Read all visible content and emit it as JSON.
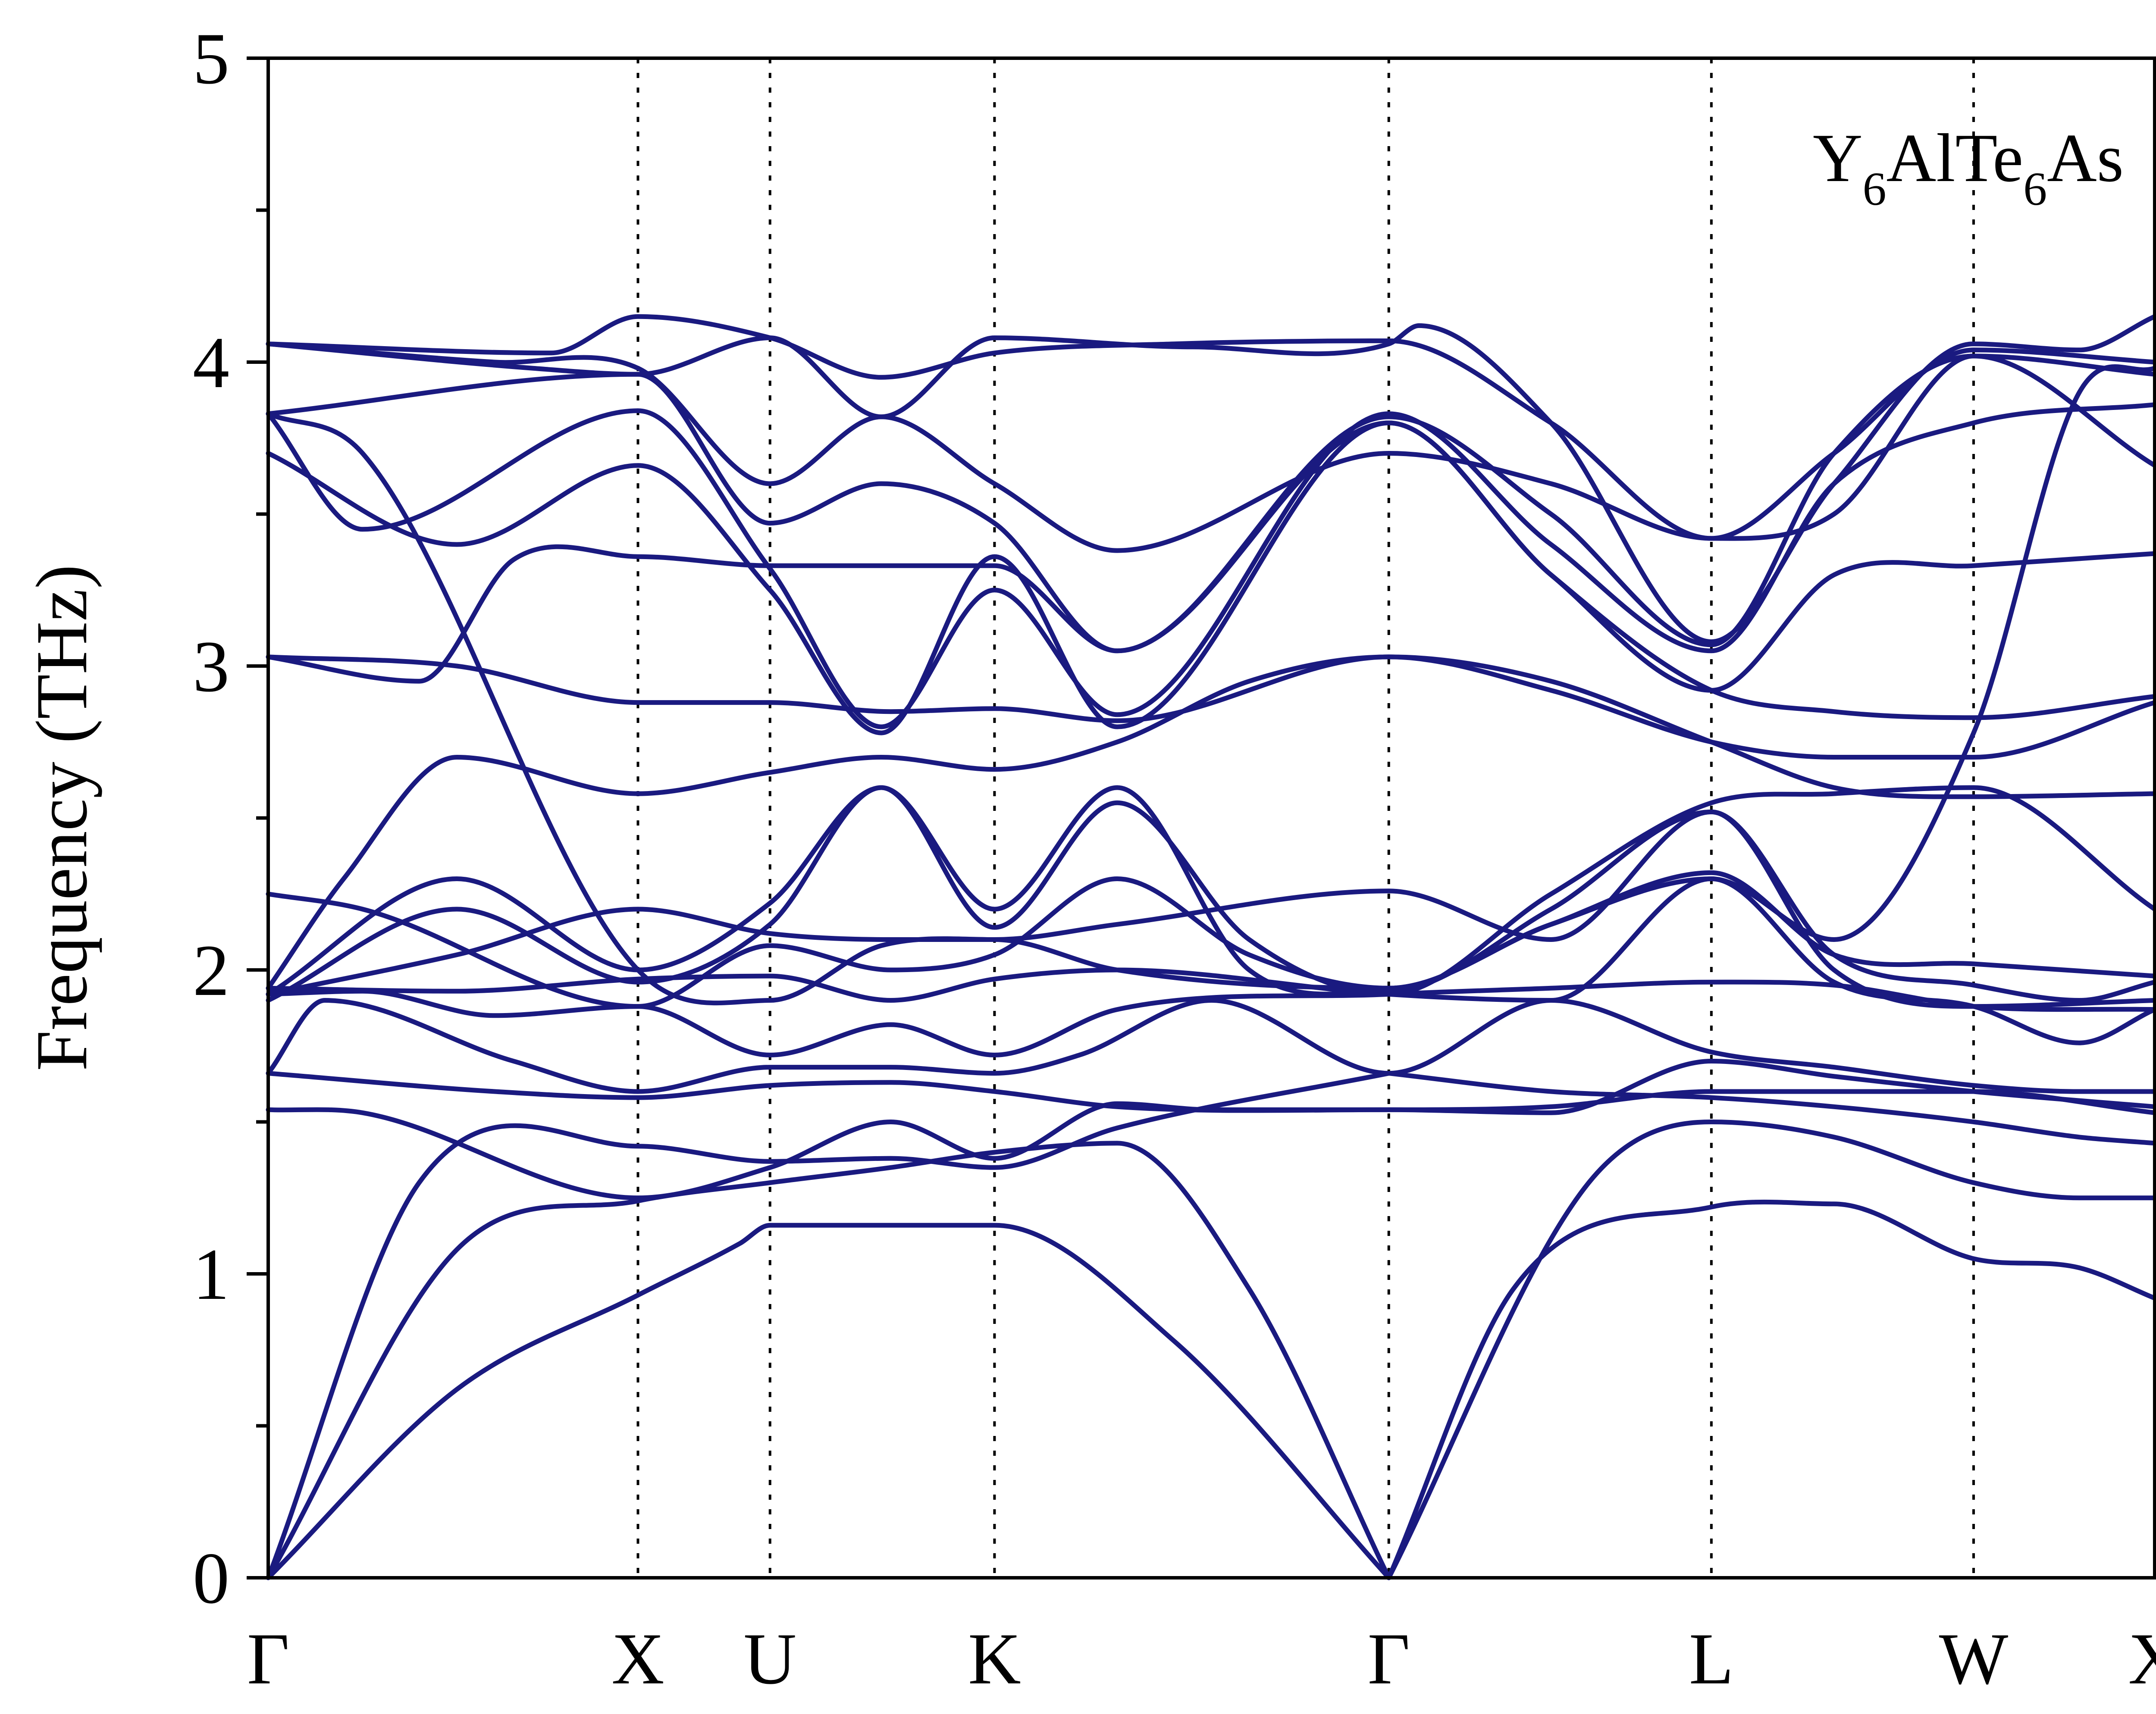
{
  "chart_data": {
    "type": "line",
    "title": "",
    "xlabel": "",
    "ylabel": "Frequency (THz)",
    "ylim": [
      0,
      5
    ],
    "yticks": [
      "0",
      "1",
      "2",
      "3",
      "4",
      "5"
    ],
    "xlim": [
      0,
      1
    ],
    "grid": false,
    "legend": "none",
    "line_color": "#1a1a80",
    "inset_label": {
      "main1": "Y",
      "sub1": "6",
      "main2": "AlTe",
      "sub2": "6",
      "main3": "As"
    },
    "high_symmetry_points": [
      {
        "label": "Γ",
        "x": 0.0
      },
      {
        "label": "X",
        "x": 0.196
      },
      {
        "label": "U",
        "x": 0.266
      },
      {
        "label": "K",
        "x": 0.385
      },
      {
        "label": "Γ",
        "x": 0.594
      },
      {
        "label": "L",
        "x": 0.765
      },
      {
        "label": "W",
        "x": 0.904
      },
      {
        "label": "X",
        "x": 1.0
      }
    ],
    "bands": [
      {
        "x": [
          0,
          0.1,
          0.196,
          0.25,
          0.266,
          0.385,
          0.48,
          0.594
        ],
        "y": [
          0,
          0.62,
          0.93,
          1.1,
          1.16,
          1.16,
          0.78,
          0
        ]
      },
      {
        "x": [
          0,
          0.1,
          0.196,
          0.266,
          0.33,
          0.385,
          0.45,
          0.52,
          0.594
        ],
        "y": [
          0,
          1.08,
          1.24,
          1.3,
          1.35,
          1.4,
          1.43,
          0.95,
          0
        ]
      },
      {
        "x": [
          0,
          0.08,
          0.196,
          0.266,
          0.33,
          0.385,
          0.45,
          0.594
        ],
        "y": [
          0,
          1.3,
          1.42,
          1.37,
          1.38,
          1.35,
          1.48,
          1.66
        ]
      },
      {
        "x": [
          0.594,
          0.66,
          0.765,
          0.83,
          0.904,
          0.96,
          1.0
        ],
        "y": [
          0,
          0.95,
          1.22,
          1.23,
          1.05,
          1.02,
          0.92
        ]
      },
      {
        "x": [
          0.594,
          0.7,
          0.765,
          0.83,
          0.904,
          0.96,
          1.0
        ],
        "y": [
          0,
          1.3,
          1.5,
          1.45,
          1.3,
          1.25,
          1.25
        ]
      },
      {
        "x": [
          0.594,
          0.68,
          0.765,
          0.83,
          0.904,
          0.96,
          1.0
        ],
        "y": [
          1.66,
          1.6,
          1.58,
          1.55,
          1.5,
          1.45,
          1.43
        ]
      },
      {
        "x": [
          0,
          0.05,
          0.196,
          0.266,
          0.33,
          0.385,
          0.45,
          0.5,
          0.594,
          0.68,
          0.765,
          0.83,
          0.904,
          1.0
        ],
        "y": [
          1.54,
          1.53,
          1.25,
          1.35,
          1.5,
          1.38,
          1.56,
          1.54,
          1.54,
          1.53,
          1.7,
          1.65,
          1.6,
          1.55
        ]
      },
      {
        "x": [
          0,
          0.12,
          0.196,
          0.266,
          0.33,
          0.385,
          0.45,
          0.594,
          0.68,
          0.765,
          0.83,
          0.904,
          1.0
        ],
        "y": [
          1.66,
          1.6,
          1.58,
          1.62,
          1.63,
          1.6,
          1.55,
          1.54,
          1.55,
          1.6,
          1.6,
          1.6,
          1.53
        ]
      },
      {
        "x": [
          0,
          0.03,
          0.13,
          0.196,
          0.266,
          0.33,
          0.385,
          0.43,
          0.5,
          0.594,
          0.68,
          0.765,
          0.83,
          0.904,
          0.96,
          1.0
        ],
        "y": [
          1.66,
          1.9,
          1.7,
          1.6,
          1.68,
          1.68,
          1.66,
          1.72,
          1.9,
          1.66,
          1.9,
          1.73,
          1.68,
          1.62,
          1.6,
          1.6
        ]
      },
      {
        "x": [
          0,
          0.05,
          0.12,
          0.196,
          0.266,
          0.33,
          0.385,
          0.45,
          0.594,
          0.68,
          0.765,
          0.83,
          0.904,
          1.0
        ],
        "y": [
          1.92,
          1.93,
          1.85,
          1.88,
          1.72,
          1.82,
          1.72,
          1.87,
          1.92,
          1.94,
          1.96,
          1.95,
          1.88,
          1.87
        ]
      },
      {
        "x": [
          0,
          0.1,
          0.196,
          0.266,
          0.33,
          0.385,
          0.45,
          0.594,
          0.68,
          0.765,
          0.83,
          0.904,
          0.96,
          1.0
        ],
        "y": [
          1.94,
          1.93,
          1.97,
          1.98,
          1.9,
          1.97,
          2.0,
          1.92,
          1.9,
          2.3,
          1.96,
          1.88,
          1.76,
          1.87
        ]
      },
      {
        "x": [
          0,
          0.1,
          0.196,
          0.266,
          0.33,
          0.385,
          0.45,
          0.594,
          0.68,
          0.765,
          0.83,
          0.904,
          0.96,
          1.0
        ],
        "y": [
          1.92,
          2.05,
          2.2,
          2.12,
          2.1,
          2.1,
          2.15,
          2.26,
          2.1,
          2.52,
          2.05,
          1.95,
          1.9,
          1.96
        ]
      },
      {
        "x": [
          0,
          0.05,
          0.196,
          0.266,
          0.33,
          0.385,
          0.45,
          0.52,
          0.594,
          0.68,
          0.765,
          0.83,
          0.904,
          1.0
        ],
        "y": [
          2.25,
          2.2,
          1.88,
          2.08,
          2.0,
          2.05,
          2.3,
          2.05,
          1.94,
          2.15,
          2.32,
          2.05,
          2.02,
          1.98
        ]
      },
      {
        "x": [
          0,
          0.1,
          0.196,
          0.266,
          0.325,
          0.385,
          0.45,
          0.52,
          0.594,
          0.68,
          0.765,
          0.83,
          0.904,
          1.0
        ],
        "y": [
          1.9,
          2.2,
          1.96,
          2.15,
          2.6,
          2.2,
          2.6,
          2.0,
          1.93,
          2.2,
          2.52,
          2.0,
          1.88,
          1.9
        ]
      },
      {
        "x": [
          0,
          0.1,
          0.196,
          0.266,
          0.325,
          0.385,
          0.45,
          0.52,
          0.594,
          0.68,
          0.765,
          0.83,
          0.904,
          1.0
        ],
        "y": [
          1.92,
          2.3,
          2.0,
          2.22,
          2.6,
          2.14,
          2.55,
          2.1,
          1.92,
          2.25,
          2.55,
          2.58,
          2.6,
          2.2
        ]
      },
      {
        "x": [
          0,
          0.04,
          0.1,
          0.196,
          0.266,
          0.325,
          0.385,
          0.45,
          0.52,
          0.594,
          0.68,
          0.765,
          0.83,
          0.904,
          1.0
        ],
        "y": [
          1.94,
          2.3,
          2.7,
          2.58,
          2.65,
          2.7,
          2.66,
          2.75,
          2.95,
          3.03,
          2.95,
          2.75,
          2.6,
          2.57,
          2.58
        ]
      },
      {
        "x": [
          0,
          0.1,
          0.196,
          0.266,
          0.33,
          0.385,
          0.45,
          0.594,
          0.68,
          0.765,
          0.83,
          0.904,
          1.0
        ],
        "y": [
          3.03,
          3.0,
          2.88,
          2.88,
          2.85,
          2.86,
          2.82,
          3.03,
          2.92,
          2.75,
          2.7,
          2.7,
          2.88
        ]
      },
      {
        "x": [
          0,
          0.08,
          0.13,
          0.196,
          0.266,
          0.325,
          0.385,
          0.45,
          0.594,
          0.68,
          0.765,
          0.83,
          0.904,
          1.0
        ],
        "y": [
          3.03,
          2.95,
          3.35,
          3.36,
          3.33,
          3.33,
          3.33,
          3.05,
          3.8,
          3.3,
          2.92,
          2.85,
          2.83,
          2.9
        ]
      },
      {
        "x": [
          0,
          0.1,
          0.196,
          0.266,
          0.325,
          0.385,
          0.45,
          0.594,
          0.68,
          0.765,
          0.83,
          0.904,
          1.0
        ],
        "y": [
          3.7,
          3.4,
          3.66,
          3.25,
          2.78,
          3.36,
          2.8,
          3.8,
          3.3,
          2.92,
          3.3,
          3.33,
          3.37
        ]
      },
      {
        "x": [
          0,
          0.05,
          0.196,
          0.266,
          0.325,
          0.385,
          0.45,
          0.594,
          0.68,
          0.765,
          0.83,
          0.904,
          1.0
        ],
        "y": [
          3.83,
          3.45,
          3.84,
          3.32,
          2.8,
          3.25,
          2.84,
          3.83,
          3.4,
          3.05,
          3.6,
          3.8,
          3.86
        ]
      },
      {
        "x": [
          0,
          0.196,
          0.266,
          0.325,
          0.385,
          0.45,
          0.594,
          0.68,
          0.765,
          0.83,
          0.904,
          1.0
        ],
        "y": [
          3.83,
          3.96,
          3.47,
          3.6,
          3.47,
          3.05,
          3.82,
          3.5,
          3.07,
          3.7,
          4.02,
          3.66
        ]
      },
      {
        "x": [
          0,
          0.12,
          0.196,
          0.266,
          0.325,
          0.385,
          0.45,
          0.594,
          0.68,
          0.765,
          0.83,
          0.904,
          1.0
        ],
        "y": [
          4.06,
          4.0,
          3.98,
          3.6,
          3.82,
          3.6,
          3.38,
          3.7,
          3.6,
          3.42,
          3.5,
          4.02,
          3.96
        ]
      },
      {
        "x": [
          0,
          0.15,
          0.196,
          0.266,
          0.325,
          0.385,
          0.48,
          0.594,
          0.68,
          0.765,
          0.83,
          0.904,
          1.0
        ],
        "y": [
          4.06,
          4.03,
          4.15,
          4.08,
          3.95,
          4.03,
          4.06,
          4.07,
          3.8,
          3.42,
          3.7,
          4.04,
          4.0
        ]
      },
      {
        "x": [
          0,
          0.14,
          0.196,
          0.266,
          0.325,
          0.385,
          0.49,
          0.594,
          0.61,
          0.68,
          0.765,
          0.83,
          0.904,
          0.96,
          1.0
        ],
        "y": [
          4.06,
          3.98,
          3.96,
          4.08,
          3.82,
          4.08,
          4.05,
          4.06,
          4.12,
          3.8,
          3.08,
          3.6,
          4.06,
          4.04,
          4.15
        ]
      },
      {
        "x": [
          0,
          0.05,
          0.196,
          0.266,
          0.325,
          0.385,
          0.45,
          0.594,
          0.68,
          0.765,
          0.83,
          0.904,
          0.96,
          1.0
        ],
        "y": [
          3.83,
          3.7,
          2.0,
          1.9,
          2.08,
          2.1,
          2.0,
          1.94,
          2.15,
          2.3,
          2.1,
          2.78,
          3.9,
          3.98
        ]
      }
    ]
  }
}
